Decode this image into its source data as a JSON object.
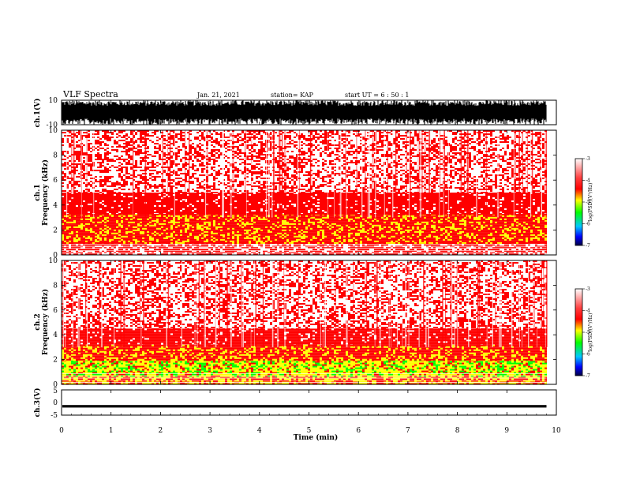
{
  "header": {
    "title": "VLF Spectra",
    "date": "Jan. 21, 2021",
    "station": "station= KAP",
    "start": "start UT =  6 : 50 : 1"
  },
  "colors": {
    "background": "#ffffff",
    "white": "#ffffff",
    "red": "#ff0000",
    "yellow": "#ffff00",
    "green": "#00ff00",
    "blue": "#0000ff",
    "trace": "#000000"
  },
  "chart_data": [
    {
      "type": "line",
      "ylabel": "ch.1(V)",
      "ylim": [
        -10,
        10
      ],
      "yticks": [
        "10",
        "-10"
      ],
      "xlim": [
        0,
        10
      ],
      "description_visible": "saturated dense waveform",
      "amplitude_range": [
        -10,
        10
      ]
    },
    {
      "type": "heatmap",
      "ylabel_line1": "ch.1",
      "ylabel_line2": "Frequency (kHz)",
      "ylim": [
        0,
        10
      ],
      "yticks": [
        "0",
        "2",
        "4",
        "6",
        "8",
        "10"
      ],
      "xlim": [
        0,
        10
      ],
      "data_end_min": 9.8,
      "bands_khz": [
        {
          "from": 0.0,
          "to": 1.0,
          "level": "red-white striped"
        },
        {
          "from": 1.0,
          "to": 3.3,
          "level": "red-yellow"
        },
        {
          "from": 3.3,
          "to": 5.0,
          "level": "red"
        },
        {
          "from": 5.0,
          "to": 10.0,
          "level": "red-white speckled"
        }
      ],
      "colorbar": {
        "label": "log(PSD)(V²/Hz)",
        "ticks": [
          "-3",
          "-4",
          "-5",
          "-6",
          "-7"
        ],
        "range": [
          -7,
          -3
        ]
      }
    },
    {
      "type": "heatmap",
      "ylabel_line1": "ch.2",
      "ylabel_line2": "Frequency (kHz)",
      "ylim": [
        0,
        10
      ],
      "yticks": [
        "0",
        "2",
        "4",
        "6",
        "8",
        "10"
      ],
      "xlim": [
        0,
        10
      ],
      "data_end_min": 9.8,
      "bands_khz": [
        {
          "from": 0.0,
          "to": 0.6,
          "level": "yellow-red striped"
        },
        {
          "from": 0.6,
          "to": 2.0,
          "level": "yellow-green"
        },
        {
          "from": 2.0,
          "to": 3.2,
          "level": "red-yellow"
        },
        {
          "from": 3.2,
          "to": 4.5,
          "level": "red"
        },
        {
          "from": 4.5,
          "to": 10.0,
          "level": "red-white speckled"
        }
      ],
      "colorbar": {
        "label": "log(PSD)(V²/Hz)",
        "ticks": [
          "-3",
          "-4",
          "-5",
          "-6",
          "-7"
        ],
        "range": [
          -7,
          -3
        ]
      }
    },
    {
      "type": "line",
      "ylabel": "ch.3(V)",
      "ylim": [
        -5,
        5
      ],
      "yticks": [
        "5",
        "0",
        "-5"
      ],
      "xlim": [
        0,
        10
      ],
      "trace_level": [
        -2.0,
        -1.0
      ],
      "xlabel": "Time (min)",
      "xticks": [
        "0",
        "1",
        "2",
        "3",
        "4",
        "5",
        "6",
        "7",
        "8",
        "9",
        "10"
      ]
    }
  ]
}
